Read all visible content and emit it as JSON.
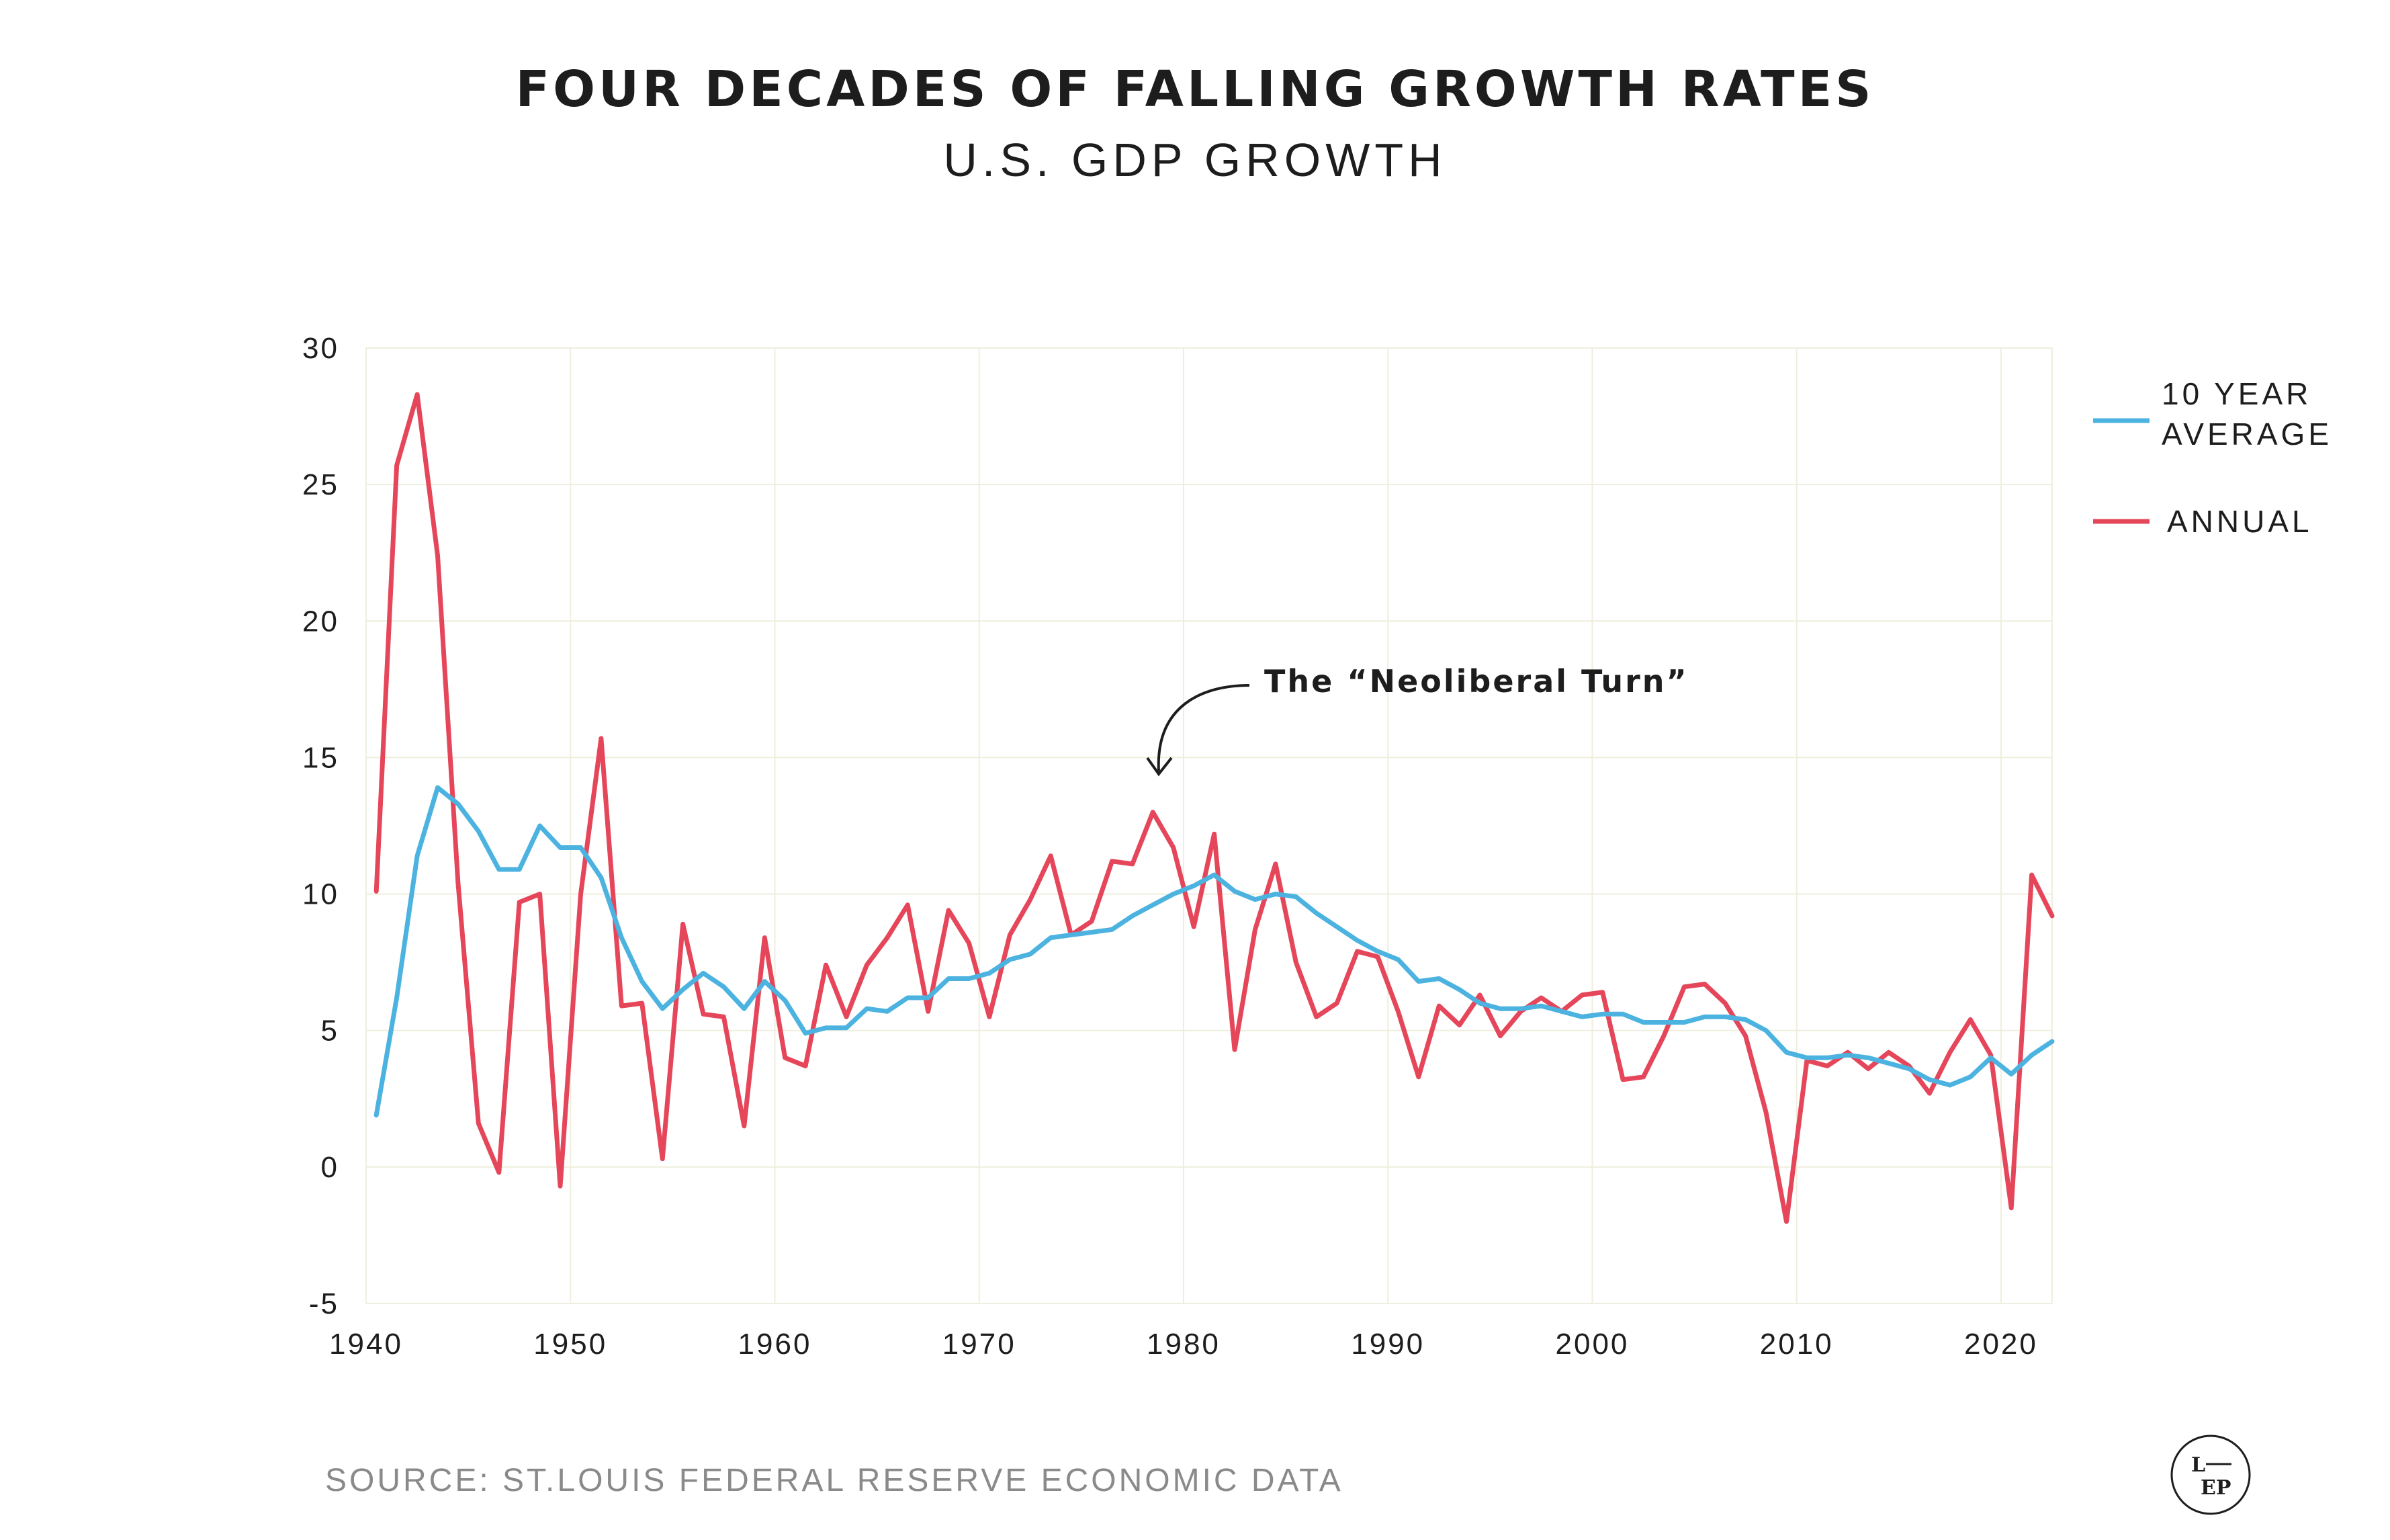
{
  "header": {
    "title": "FOUR DECADES OF FALLING GROWTH RATES",
    "subtitle": "U.S. GDP GROWTH"
  },
  "footer": {
    "source": "SOURCE: ST.LOUIS FEDERAL RESERVE ECONOMIC DATA",
    "logo_top": "L",
    "logo_bottom": "EP"
  },
  "legend": {
    "avg_label_line1": "10 YEAR",
    "avg_label_line2": "AVERAGE",
    "annual_label": "ANNUAL"
  },
  "annotation": {
    "text": "The “Neoliberal Turn”",
    "x": 1978.5,
    "y": 14.8
  },
  "colors": {
    "annual": "#e5465a",
    "average": "#4cb3e0",
    "grid": "#efeede",
    "text": "#1d1d1d"
  },
  "chart_data": {
    "type": "line",
    "title": "FOUR DECADES OF FALLING GROWTH RATES",
    "subtitle": "U.S. GDP GROWTH",
    "xlabel": "",
    "ylabel": "",
    "xlim": [
      1940,
      2022.5
    ],
    "ylim": [
      -5,
      30
    ],
    "x_ticks": [
      1940,
      1950,
      1960,
      1970,
      1980,
      1990,
      2000,
      2010,
      2020
    ],
    "y_ticks": [
      -5,
      0,
      5,
      10,
      15,
      20,
      25,
      30
    ],
    "grid": true,
    "legend_position": "right",
    "x": [
      1940.5,
      1941.5,
      1942.5,
      1943.5,
      1944.5,
      1945.5,
      1946.5,
      1947.5,
      1948.5,
      1949.5,
      1950.5,
      1951.5,
      1952.5,
      1953.5,
      1954.5,
      1955.5,
      1956.5,
      1957.5,
      1958.5,
      1959.5,
      1960.5,
      1961.5,
      1962.5,
      1963.5,
      1964.5,
      1965.5,
      1966.5,
      1967.5,
      1968.5,
      1969.5,
      1970.5,
      1971.5,
      1972.5,
      1973.5,
      1974.5,
      1975.5,
      1976.5,
      1977.5,
      1978.5,
      1979.5,
      1980.5,
      1981.5,
      1982.5,
      1983.5,
      1984.5,
      1985.5,
      1986.5,
      1987.5,
      1988.5,
      1989.5,
      1990.5,
      1991.5,
      1992.5,
      1993.5,
      1994.5,
      1995.5,
      1996.5,
      1997.5,
      1998.5,
      1999.5,
      2000.5,
      2001.5,
      2002.5,
      2003.5,
      2004.5,
      2005.5,
      2006.5,
      2007.5,
      2008.5,
      2009.5,
      2010.5,
      2011.5,
      2012.5,
      2013.5,
      2014.5,
      2015.5,
      2016.5,
      2017.5,
      2018.5,
      2019.5,
      2020.5,
      2021.5,
      2022.5
    ],
    "series": [
      {
        "name": "ANNUAL",
        "values": [
          10.1,
          25.7,
          28.3,
          22.4,
          10.4,
          1.6,
          -0.2,
          9.7,
          10.0,
          -0.7,
          10.0,
          15.7,
          5.9,
          6.0,
          0.3,
          8.9,
          5.6,
          5.5,
          1.5,
          8.4,
          4.0,
          3.7,
          7.4,
          5.5,
          7.4,
          8.4,
          9.6,
          5.7,
          9.4,
          8.2,
          5.5,
          8.5,
          9.8,
          11.4,
          8.5,
          9.0,
          11.2,
          11.1,
          13.0,
          11.7,
          8.8,
          12.2,
          4.3,
          8.7,
          11.1,
          7.5,
          5.5,
          6.0,
          7.9,
          7.7,
          5.7,
          3.3,
          5.9,
          5.2,
          6.3,
          4.8,
          5.7,
          6.2,
          5.7,
          6.3,
          6.4,
          3.2,
          3.3,
          4.8,
          6.6,
          6.7,
          6.0,
          4.8,
          2.0,
          -2.0,
          3.9,
          3.7,
          4.2,
          3.6,
          4.2,
          3.7,
          2.7,
          4.2,
          5.4,
          4.1,
          -1.5,
          10.7,
          9.2
        ]
      },
      {
        "name": "10 YEAR AVERAGE",
        "values": [
          1.9,
          6.2,
          11.4,
          13.9,
          13.3,
          12.3,
          10.9,
          10.9,
          12.5,
          11.7,
          11.7,
          10.6,
          8.4,
          6.8,
          5.8,
          6.5,
          7.1,
          6.6,
          5.8,
          6.8,
          6.1,
          4.9,
          5.1,
          5.1,
          5.8,
          5.7,
          6.2,
          6.2,
          6.9,
          6.9,
          7.1,
          7.6,
          7.8,
          8.4,
          8.5,
          8.6,
          8.7,
          9.2,
          9.6,
          10.0,
          10.3,
          10.7,
          10.1,
          9.8,
          10.0,
          9.9,
          9.3,
          8.8,
          8.3,
          7.9,
          7.6,
          6.8,
          6.9,
          6.5,
          6.0,
          5.8,
          5.8,
          5.9,
          5.7,
          5.5,
          5.6,
          5.6,
          5.3,
          5.3,
          5.3,
          5.5,
          5.5,
          5.4,
          5.0,
          4.2,
          4.0,
          4.0,
          4.1,
          4.0,
          3.8,
          3.6,
          3.2,
          3.0,
          3.3,
          4.0,
          3.4,
          4.1,
          4.6
        ]
      }
    ]
  }
}
